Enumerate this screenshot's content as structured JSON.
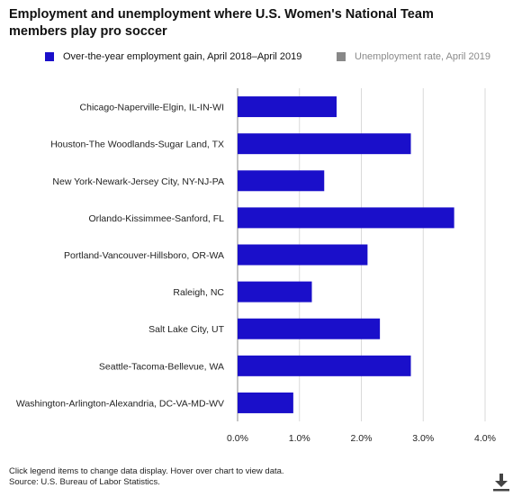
{
  "header": {
    "title_line1": "Employment and unemployment where U.S. Women's National Team",
    "title_line2": "members play pro soccer"
  },
  "legend": {
    "items": [
      {
        "label": "Over-the-year employment gain, April 2018–April 2019",
        "color": "#1a0fca",
        "active": true
      },
      {
        "label": "Unemployment rate, April 2019",
        "color": "#888888",
        "active": false
      }
    ]
  },
  "chart_data": {
    "type": "bar",
    "orientation": "horizontal",
    "categories": [
      "Chicago-Naperville-Elgin, IL-IN-WI",
      "Houston-The Woodlands-Sugar Land, TX",
      "New York-Newark-Jersey City, NY-NJ-PA",
      "Orlando-Kissimmee-Sanford, FL",
      "Portland-Vancouver-Hillsboro, OR-WA",
      "Raleigh, NC",
      "Salt Lake City, UT",
      "Seattle-Tacoma-Bellevue, WA",
      "Washington-Arlington-Alexandria, DC-VA-MD-WV"
    ],
    "series": [
      {
        "name": "Over-the-year employment gain, April 2018–April 2019",
        "values": [
          1.6,
          2.8,
          1.4,
          3.5,
          2.1,
          1.2,
          2.3,
          2.8,
          0.9
        ]
      }
    ],
    "xlim": [
      0,
      4
    ],
    "xticks": [
      0,
      1,
      2,
      3,
      4
    ],
    "xtick_labels": [
      "0.0%",
      "1.0%",
      "2.0%",
      "3.0%",
      "4.0%"
    ],
    "grid": true,
    "bar_color": "#1a0fca"
  },
  "footer": {
    "line1": "Click legend items to change data display. Hover over chart to view data.",
    "line2": "Source: U.S. Bureau of Labor Statistics."
  },
  "icons": {
    "download": "download-icon"
  }
}
